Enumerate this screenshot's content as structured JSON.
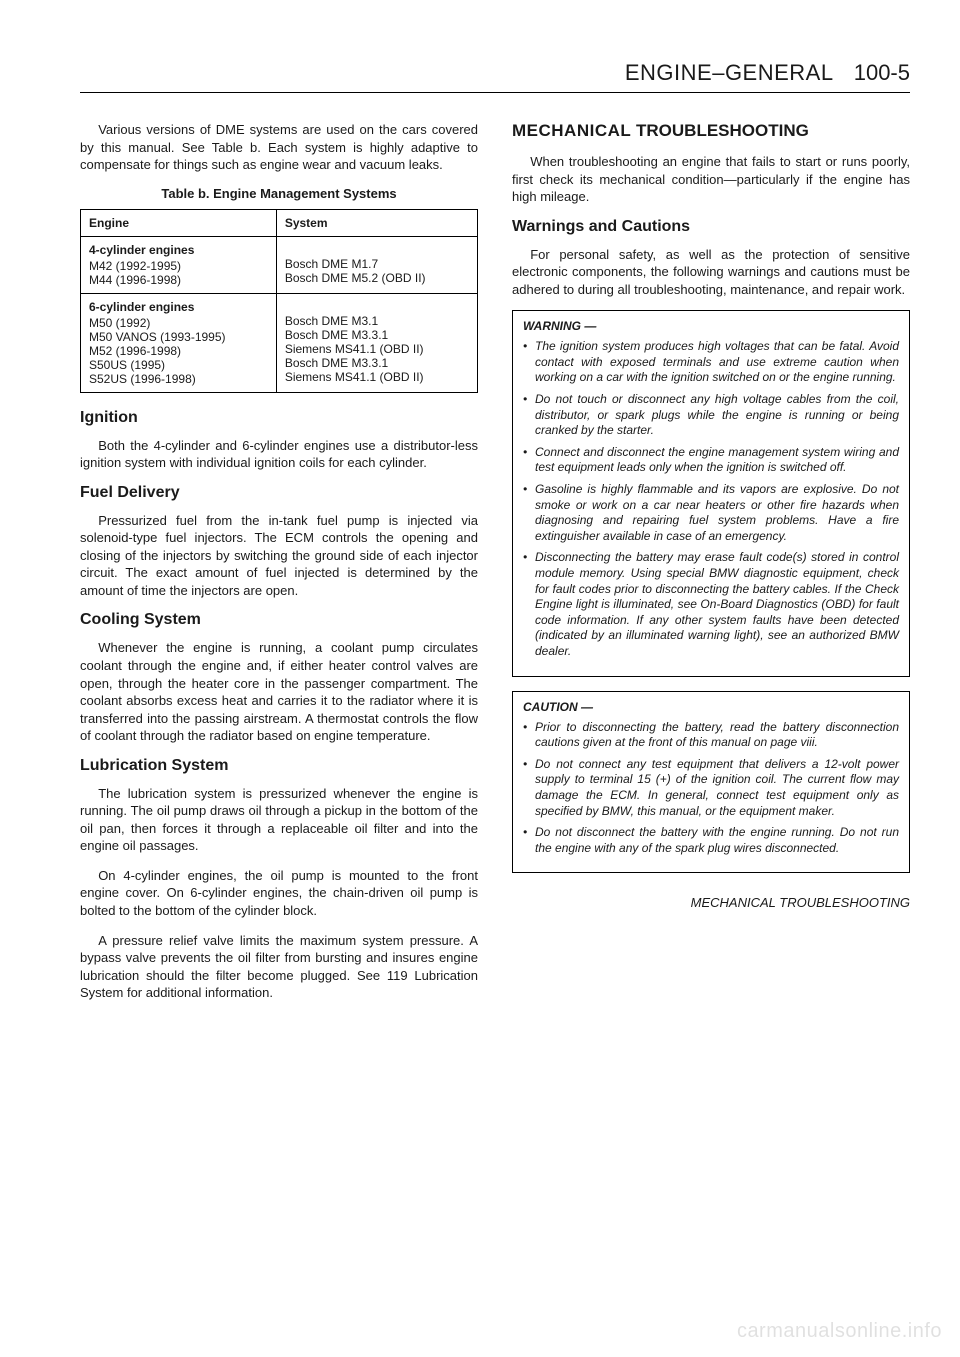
{
  "header": {
    "section": "ENGINE–GENERAL",
    "page": "100-5"
  },
  "left": {
    "intro": "Various versions of DME systems are used on the cars covered by this manual. See Table b. Each system is highly adaptive to compensate for things such as engine wear and vacuum leaks.",
    "table": {
      "caption": "Table b. Engine Management Systems",
      "col1": "Engine",
      "col2": "System",
      "group1_title": "4-cylinder engines",
      "group1": [
        {
          "engine": "M42 (1992-1995)",
          "system": "Bosch DME M1.7"
        },
        {
          "engine": "M44 (1996-1998)",
          "system": "Bosch DME M5.2 (OBD II)"
        }
      ],
      "group2_title": "6-cylinder engines",
      "group2": [
        {
          "engine": "M50 (1992)",
          "system": "Bosch DME M3.1"
        },
        {
          "engine": "M50 VANOS (1993-1995)",
          "system": "Bosch DME M3.3.1"
        },
        {
          "engine": "M52 (1996-1998)",
          "system": "Siemens MS41.1 (OBD II)"
        },
        {
          "engine": "S50US (1995)",
          "system": "Bosch DME M3.3.1"
        },
        {
          "engine": "S52US (1996-1998)",
          "system": "Siemens MS41.1 (OBD II)"
        }
      ]
    },
    "ignition": {
      "title": "Ignition",
      "p1": "Both the 4-cylinder and 6-cylinder engines use a distributor-less ignition system with individual ignition coils for each cylinder."
    },
    "fuel": {
      "title": "Fuel Delivery",
      "p1": "Pressurized fuel from the in-tank fuel pump is injected via solenoid-type fuel injectors. The ECM controls the opening and closing of the injectors by switching the ground side of each injector circuit. The exact amount of fuel injected is determined by the amount of time the injectors are open."
    },
    "cooling": {
      "title": "Cooling System",
      "p1": "Whenever the engine is running, a coolant pump circulates coolant through the engine and, if either heater control valves are open, through the heater core in the passenger compartment. The coolant absorbs excess heat and carries it to the radiator where it is transferred into the passing airstream. A thermostat controls the flow of coolant through the radiator based on engine temperature."
    },
    "lube": {
      "title": "Lubrication System",
      "p1": "The lubrication system is pressurized whenever the engine is running. The oil pump draws oil through a pickup in the bottom of the oil pan, then forces it through a replaceable oil filter and into the engine oil passages.",
      "p2": "On 4-cylinder engines, the oil pump is mounted to the front engine cover. On 6-cylinder engines, the chain-driven oil pump is bolted to the bottom of the cylinder block.",
      "p3": "A pressure relief valve limits the maximum system pressure. A bypass valve prevents the oil filter from bursting and insures engine lubrication should the filter become plugged. See 119 Lubrication System for additional information."
    }
  },
  "right": {
    "title_caps": "MECHANICAL",
    "title_rest": " TROUBLESHOOTING",
    "intro": "When troubleshooting an engine that fails to start or runs poorly, first check its mechanical condition—particularly if the engine has high mileage.",
    "warnings_title": "Warnings and Cautions",
    "warnings_intro": "For personal safety, as well as the protection of sensitive electronic components, the following warnings and cautions must be adhered to during all troubleshooting, maintenance, and repair work.",
    "warning_box": {
      "title": "WARNING —",
      "items": [
        "The ignition system produces high voltages that can be fatal. Avoid contact with exposed terminals and use extreme caution when working on a car with the ignition switched on or the engine running.",
        "Do not touch or disconnect any high voltage cables from the coil, distributor, or spark plugs while the engine is running or being cranked by the starter.",
        "Connect and disconnect the engine management system wiring and test equipment leads only when the ignition is switched off.",
        "Gasoline is highly flammable and its vapors are explosive. Do not smoke or work on a car near heaters or other fire hazards when diagnosing and repairing fuel system problems. Have a fire extinguisher available in case of an emergency.",
        "Disconnecting the battery may erase fault code(s) stored in control module memory. Using special BMW diagnostic equipment, check for fault codes prior to disconnecting the battery cables. If the Check Engine light is illuminated, see On-Board Diagnostics (OBD) for fault code information. If any other system faults have been detected (indicated by an illuminated warning light), see an authorized BMW dealer."
      ]
    },
    "caution_box": {
      "title": "CAUTION —",
      "items": [
        "Prior to disconnecting the battery, read the battery disconnection cautions given at the front of this manual on page viii.",
        "Do not connect any test equipment that delivers a 12-volt power supply to terminal 15 (+) of the ignition coil. The current flow may damage the ECM. In general, connect test equipment only as specified by BMW, this manual, or the equipment maker.",
        "Do not disconnect the battery with the engine running. Do not run the engine with any of the spark plug wires disconnected."
      ]
    },
    "footer": "MECHANICAL TROUBLESHOOTING"
  },
  "watermark": "carmanualsonline.info"
}
